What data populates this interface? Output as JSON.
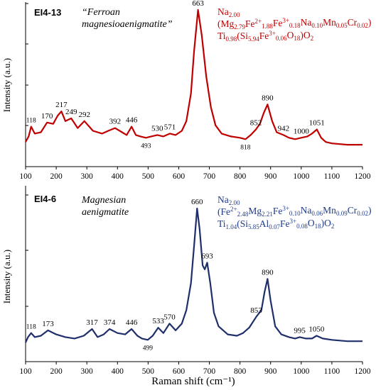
{
  "chart_data": [
    {
      "type": "line",
      "sample_label": "EI4-13",
      "mineral_name": [
        "“Ferroan",
        "magnesioaenigmatite”"
      ],
      "ylabel": "Intensity (a.u.)",
      "xlim": [
        100,
        1200
      ],
      "x_ticks": [
        100,
        200,
        300,
        400,
        500,
        600,
        700,
        800,
        900,
        1000,
        1100,
        1200
      ],
      "color": "#c00000",
      "formula_color": "#c00000",
      "series": [
        {
          "x": [
            100,
            110,
            118,
            130,
            150,
            170,
            190,
            205,
            217,
            230,
            249,
            270,
            292,
            320,
            350,
            370,
            392,
            415,
            430,
            446,
            460,
            475,
            493,
            510,
            530,
            550,
            571,
            590,
            610,
            625,
            640,
            650,
            663,
            675,
            690,
            705,
            720,
            740,
            770,
            800,
            818,
            835,
            852,
            865,
            878,
            890,
            905,
            920,
            942,
            960,
            980,
            1000,
            1020,
            1035,
            1051,
            1065,
            1080,
            1100,
            1150,
            1200
          ],
          "y": [
            0.05,
            0.09,
            0.16,
            0.11,
            0.12,
            0.19,
            0.18,
            0.24,
            0.27,
            0.2,
            0.22,
            0.15,
            0.2,
            0.13,
            0.11,
            0.13,
            0.15,
            0.12,
            0.1,
            0.16,
            0.1,
            0.09,
            0.08,
            0.09,
            0.1,
            0.09,
            0.11,
            0.1,
            0.13,
            0.2,
            0.4,
            0.7,
            1.0,
            0.82,
            0.52,
            0.3,
            0.17,
            0.11,
            0.09,
            0.08,
            0.07,
            0.1,
            0.14,
            0.18,
            0.26,
            0.32,
            0.2,
            0.12,
            0.1,
            0.08,
            0.07,
            0.08,
            0.09,
            0.11,
            0.14,
            0.08,
            0.05,
            0.04,
            0.03,
            0.03
          ]
        }
      ],
      "peak_labels": [
        {
          "x": 118,
          "y": 0.16,
          "text": "118"
        },
        {
          "x": 170,
          "y": 0.19,
          "text": "170"
        },
        {
          "x": 217,
          "y": 0.27,
          "text": "217"
        },
        {
          "x": 249,
          "y": 0.22,
          "text": "249"
        },
        {
          "x": 292,
          "y": 0.2,
          "text": "292"
        },
        {
          "x": 392,
          "y": 0.15,
          "text": "392"
        },
        {
          "x": 446,
          "y": 0.16,
          "text": "446"
        },
        {
          "x": 493,
          "y": 0.08,
          "text": "493",
          "below": true
        },
        {
          "x": 530,
          "y": 0.1,
          "text": "530"
        },
        {
          "x": 571,
          "y": 0.11,
          "text": "571"
        },
        {
          "x": 663,
          "y": 1.0,
          "text": "663"
        },
        {
          "x": 818,
          "y": 0.07,
          "text": "818",
          "below": true
        },
        {
          "x": 852,
          "y": 0.14,
          "text": "852"
        },
        {
          "x": 890,
          "y": 0.32,
          "text": "890"
        },
        {
          "x": 942,
          "y": 0.1,
          "text": "942"
        },
        {
          "x": 1000,
          "y": 0.08,
          "text": "1000"
        },
        {
          "x": 1051,
          "y": 0.14,
          "text": "1051"
        }
      ],
      "formula_lines": [
        [
          {
            "t": "Na"
          },
          {
            "t": "2.00",
            "s": "sub"
          }
        ],
        [
          {
            "t": "(Mg"
          },
          {
            "t": "2.79",
            "s": "sub"
          },
          {
            "t": "Fe"
          },
          {
            "t": "2+",
            "s": "sup"
          },
          {
            "t": "1.88",
            "s": "sub"
          },
          {
            "t": "Fe"
          },
          {
            "t": "3+",
            "s": "sup"
          },
          {
            "t": "0.18",
            "s": "sub"
          },
          {
            "t": "Na"
          },
          {
            "t": "0.10",
            "s": "sub"
          },
          {
            "t": "Mn"
          },
          {
            "t": "0.05",
            "s": "sub"
          },
          {
            "t": "Cr"
          },
          {
            "t": "0.02",
            "s": "sub"
          },
          {
            "t": ")"
          }
        ],
        [
          {
            "t": "Ti"
          },
          {
            "t": "0.98",
            "s": "sub"
          },
          {
            "t": "(Si"
          },
          {
            "t": "5.94",
            "s": "sub"
          },
          {
            "t": "Fe"
          },
          {
            "t": "3+",
            "s": "sup"
          },
          {
            "t": "0.06",
            "s": "sub"
          },
          {
            "t": "O"
          },
          {
            "t": "18",
            "s": "sub"
          },
          {
            "t": ")O"
          },
          {
            "t": "2",
            "s": "sub"
          }
        ]
      ]
    },
    {
      "type": "line",
      "sample_label": "EI4-6",
      "mineral_name": [
        "Magnesian",
        "aenigmatite"
      ],
      "ylabel": "Intensity (a.u.)",
      "xlabel": "Raman shift (cm⁻¹)",
      "xlim": [
        100,
        1200
      ],
      "x_ticks": [
        100,
        200,
        300,
        400,
        500,
        600,
        700,
        800,
        900,
        1000,
        1100,
        1200
      ],
      "color": "#1f2f6b",
      "formula_color": "#1f3a8a",
      "series": [
        {
          "x": [
            100,
            108,
            118,
            130,
            150,
            173,
            200,
            230,
            260,
            290,
            317,
            335,
            355,
            374,
            400,
            425,
            446,
            465,
            480,
            499,
            515,
            533,
            550,
            570,
            590,
            610,
            625,
            640,
            650,
            660,
            668,
            678,
            685,
            693,
            703,
            715,
            730,
            760,
            790,
            810,
            830,
            853,
            870,
            880,
            890,
            900,
            915,
            935,
            960,
            980,
            995,
            1015,
            1035,
            1050,
            1070,
            1100,
            1150,
            1200
          ],
          "y": [
            0.01,
            0.05,
            0.08,
            0.05,
            0.06,
            0.1,
            0.07,
            0.05,
            0.04,
            0.06,
            0.11,
            0.05,
            0.07,
            0.11,
            0.08,
            0.07,
            0.11,
            0.06,
            0.04,
            0.03,
            0.06,
            0.12,
            0.08,
            0.15,
            0.1,
            0.15,
            0.25,
            0.45,
            0.72,
            1.0,
            0.85,
            0.58,
            0.55,
            0.6,
            0.45,
            0.23,
            0.13,
            0.07,
            0.06,
            0.08,
            0.12,
            0.2,
            0.25,
            0.38,
            0.48,
            0.32,
            0.13,
            0.07,
            0.05,
            0.04,
            0.05,
            0.04,
            0.04,
            0.06,
            0.04,
            0.03,
            0.02,
            0.02
          ]
        }
      ],
      "peak_labels": [
        {
          "x": 118,
          "y": 0.08,
          "text": "118"
        },
        {
          "x": 173,
          "y": 0.1,
          "text": "173"
        },
        {
          "x": 317,
          "y": 0.11,
          "text": "317"
        },
        {
          "x": 374,
          "y": 0.11,
          "text": "374"
        },
        {
          "x": 446,
          "y": 0.11,
          "text": "446"
        },
        {
          "x": 499,
          "y": 0.03,
          "text": "499",
          "below": true
        },
        {
          "x": 533,
          "y": 0.12,
          "text": "533"
        },
        {
          "x": 570,
          "y": 0.15,
          "text": "570"
        },
        {
          "x": 660,
          "y": 1.0,
          "text": "660"
        },
        {
          "x": 693,
          "y": 0.6,
          "text": "693"
        },
        {
          "x": 853,
          "y": 0.2,
          "text": "853"
        },
        {
          "x": 890,
          "y": 0.48,
          "text": "890"
        },
        {
          "x": 995,
          "y": 0.05,
          "text": "995"
        },
        {
          "x": 1050,
          "y": 0.06,
          "text": "1050"
        }
      ],
      "formula_lines": [
        [
          {
            "t": "Na"
          },
          {
            "t": "2.00",
            "s": "sub"
          }
        ],
        [
          {
            "t": "(Fe"
          },
          {
            "t": "2+",
            "s": "sup"
          },
          {
            "t": "2.48",
            "s": "sub"
          },
          {
            "t": "Mg"
          },
          {
            "t": "2.21",
            "s": "sub"
          },
          {
            "t": "Fe"
          },
          {
            "t": "3+",
            "s": "sup"
          },
          {
            "t": "0.10",
            "s": "sub"
          },
          {
            "t": "Na"
          },
          {
            "t": "0.06",
            "s": "sub"
          },
          {
            "t": "Mn"
          },
          {
            "t": "0.09",
            "s": "sub"
          },
          {
            "t": "Cr"
          },
          {
            "t": "0.02",
            "s": "sub"
          },
          {
            "t": ")"
          }
        ],
        [
          {
            "t": "Ti"
          },
          {
            "t": "1.04",
            "s": "sub"
          },
          {
            "t": "(Si"
          },
          {
            "t": "5.85",
            "s": "sub"
          },
          {
            "t": "Al"
          },
          {
            "t": "0.07",
            "s": "sub"
          },
          {
            "t": "Fe"
          },
          {
            "t": "3+",
            "s": "sup"
          },
          {
            "t": "0.08",
            "s": "sub"
          },
          {
            "t": "O"
          },
          {
            "t": "18",
            "s": "sub"
          },
          {
            "t": ")O"
          },
          {
            "t": "2",
            "s": "sub"
          }
        ]
      ]
    }
  ]
}
